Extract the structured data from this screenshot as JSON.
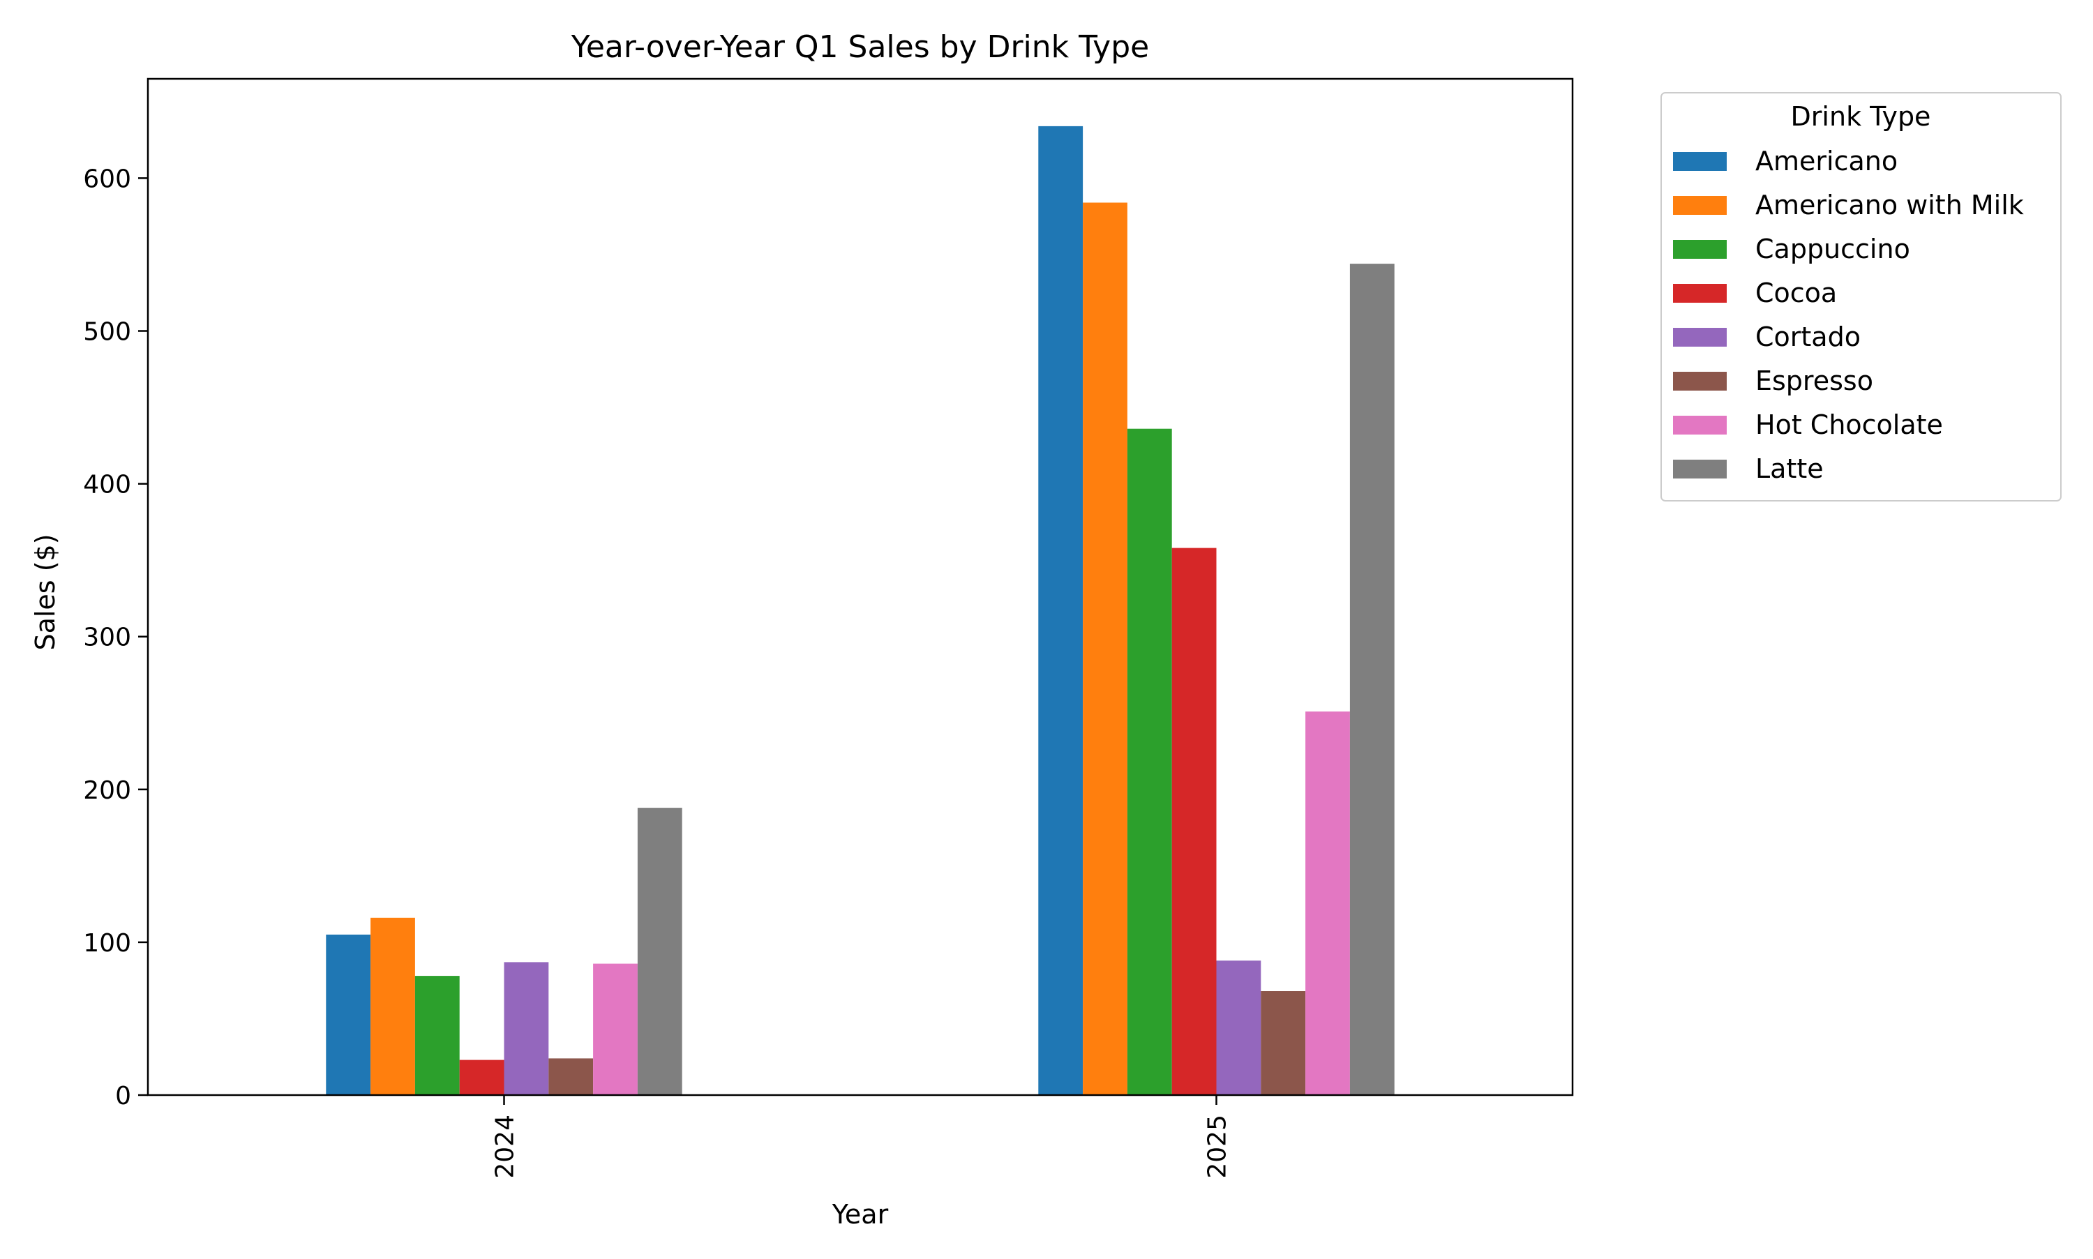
{
  "chart_data": {
    "type": "bar",
    "title": "Year-over-Year Q1 Sales by Drink Type",
    "xlabel": "Year",
    "ylabel": "Sales ($)",
    "categories": [
      "2024",
      "2025"
    ],
    "ylim": [
      0,
      665
    ],
    "yticks": [
      0,
      100,
      200,
      300,
      400,
      500,
      600
    ],
    "grid": false,
    "legend": {
      "title": "Drink Type",
      "placement": "outside-top-right"
    },
    "series": [
      {
        "name": "Americano",
        "color": "#1f77b4",
        "values": [
          105,
          634
        ]
      },
      {
        "name": "Americano with Milk",
        "color": "#ff7f0e",
        "values": [
          116,
          584
        ]
      },
      {
        "name": "Cappuccino",
        "color": "#2ca02c",
        "values": [
          78,
          436
        ]
      },
      {
        "name": "Cocoa",
        "color": "#d62728",
        "values": [
          23,
          358
        ]
      },
      {
        "name": "Cortado",
        "color": "#9467bd",
        "values": [
          87,
          88
        ]
      },
      {
        "name": "Espresso",
        "color": "#8c564b",
        "values": [
          24,
          68
        ]
      },
      {
        "name": "Hot Chocolate",
        "color": "#e377c2",
        "values": [
          86,
          251
        ]
      },
      {
        "name": "Latte",
        "color": "#7f7f7f",
        "values": [
          188,
          544
        ]
      }
    ]
  }
}
